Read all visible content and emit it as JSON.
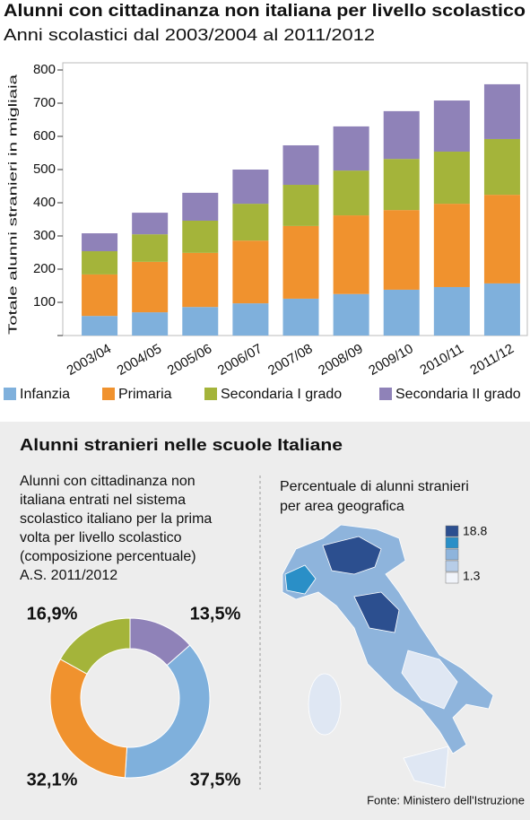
{
  "chart_data": [
    {
      "type": "bar",
      "stacked": true,
      "title": "Alunni con cittadinanza non italiana per livello scolastico",
      "subtitle": "Anni scolastici dal  2003/2004  al 2011/2012",
      "y_label": "Totale alunni stranieri in migliaia",
      "categories": [
        "2003/04",
        "2004/05",
        "2005/06",
        "2006/07",
        "2007/08",
        "2008/09",
        "2009/10",
        "2010/11",
        "2011/12"
      ],
      "series": [
        {
          "name": "Infanzia",
          "color": "#7fb0dc",
          "values": [
            59,
            70,
            86,
            97,
            111,
            125,
            138,
            146,
            157
          ]
        },
        {
          "name": "Primaria",
          "color": "#f0922e",
          "values": [
            125,
            152,
            163,
            189,
            219,
            237,
            240,
            251,
            267
          ]
        },
        {
          "name": "Secondaria I grado",
          "color": "#a4b43a",
          "values": [
            70,
            83,
            97,
            111,
            124,
            135,
            154,
            157,
            168
          ]
        },
        {
          "name": "Secondaria II grado",
          "color": "#8f82b8",
          "values": [
            54,
            65,
            84,
            103,
            119,
            133,
            144,
            154,
            165
          ]
        }
      ],
      "ylim": [
        0,
        800
      ],
      "yticks": [
        100,
        200,
        300,
        400,
        500,
        600,
        700,
        800
      ],
      "grid": false,
      "legend": "bottom"
    },
    {
      "type": "pie",
      "donut": true,
      "values": [
        13.5,
        37.5,
        32.1,
        16.9
      ],
      "value_labels": [
        "13,5%",
        "37,5%",
        "32,1%",
        "16,9%"
      ],
      "colors": [
        "#8f82b8",
        "#7fb0dc",
        "#f0922e",
        "#a4b43a"
      ]
    }
  ],
  "panel": {
    "title": "Alunni stranieri nelle scuole Italiane",
    "description": [
      "Alunni con cittadinanza non",
      "italiana entrati nel sistema",
      "scolastico italiano per la prima",
      "volta per livello scolastico",
      "(composizione percentuale)",
      " A.S. 2011/2012"
    ],
    "map_title": [
      "Percentuale di alunni stranieri",
      "per area geografica"
    ],
    "map_legend": [
      "18.8",
      "1.3"
    ],
    "source": "Fonte: Ministero dell'Istruzione"
  }
}
